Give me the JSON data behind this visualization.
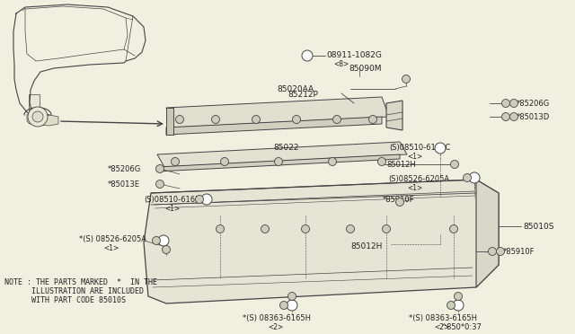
{
  "bg_color": "#f0f0e0",
  "line_color": "#444444",
  "text_color": "#222222",
  "fig_width": 6.4,
  "fig_height": 3.72,
  "note_line1": "NOTE : THE PARTS MARKED  *  IN THE",
  "note_line2": "      ILLUSTRATION ARE INCLUDED",
  "note_line3": "      WITH PART CODE 85010S"
}
